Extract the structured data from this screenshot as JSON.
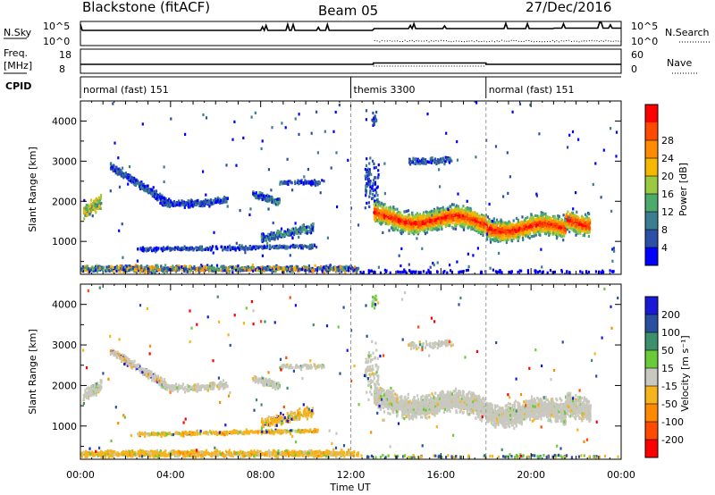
{
  "header": {
    "station": "Blackstone (fitACF)",
    "beam": "Beam 05",
    "date": "27/Dec/2016"
  },
  "labels": {
    "nsky": "N.Sky",
    "nsearch": "N.Search",
    "freq": "Freq.",
    "freq_unit": "[MHz]",
    "nave": "Nave",
    "cpid": "CPID",
    "slant_range": "Slant Range [km]",
    "time_ut": "Time UT",
    "power_label": "Power [dB]",
    "velocity_label": "Velocity [m s⁻¹]"
  },
  "noise_axis": {
    "left_ticks": [
      "10^5",
      "10^0"
    ],
    "right_ticks": [
      "10^5",
      "10^0"
    ]
  },
  "freq_axis": {
    "left_ticks": [
      "18",
      "8"
    ],
    "right_ticks": [
      "60",
      "0"
    ]
  },
  "cpid": [
    {
      "label": "normal (fast) 151",
      "start": 0,
      "end": 12
    },
    {
      "label": "themis 3300",
      "start": 12,
      "end": 18
    },
    {
      "label": "normal (fast) 151",
      "start": 18,
      "end": 24
    }
  ],
  "colors": {
    "power": [
      "#0000ff",
      "#2c4fa8",
      "#3a7e8f",
      "#4caa6a",
      "#9bc941",
      "#f5b700",
      "#ff8c00",
      "#ff4a00",
      "#ff0000"
    ],
    "velocity": [
      "#1a1ad6",
      "#2a4fa0",
      "#3d8f6d",
      "#6acb3a",
      "#c8c8be",
      "#f5b41e",
      "#ff8a00",
      "#ff4a00",
      "#ff0000"
    ]
  },
  "chart_data": [
    {
      "type": "heatmap",
      "name": "power",
      "xlabel": "Time UT",
      "ylabel": "Slant Range [km]",
      "x_ticks": [
        "00:00",
        "04:00",
        "08:00",
        "12:00",
        "16:00",
        "20:00",
        "00:00"
      ],
      "xlim_hours": [
        0,
        24
      ],
      "y_ticks": [
        1000,
        2000,
        3000,
        4000
      ],
      "ylim": [
        180,
        4500
      ],
      "colorbar_label": "Power [dB]",
      "colorbar_ticks": [
        "4",
        "8",
        "12",
        "16",
        "20",
        "24",
        "28"
      ],
      "colorbar_range": [
        0,
        32
      ]
    },
    {
      "type": "heatmap",
      "name": "velocity",
      "xlabel": "Time UT",
      "ylabel": "Slant Range [km]",
      "x_ticks": [
        "00:00",
        "04:00",
        "08:00",
        "12:00",
        "16:00",
        "20:00",
        "00:00"
      ],
      "xlim_hours": [
        0,
        24
      ],
      "y_ticks": [
        1000,
        2000,
        3000,
        4000
      ],
      "ylim": [
        180,
        4500
      ],
      "colorbar_label": "Velocity [m s⁻¹]",
      "colorbar_ticks": [
        "200",
        "100",
        "50",
        "15",
        "-15",
        "-50",
        "-100",
        "-200"
      ]
    }
  ]
}
